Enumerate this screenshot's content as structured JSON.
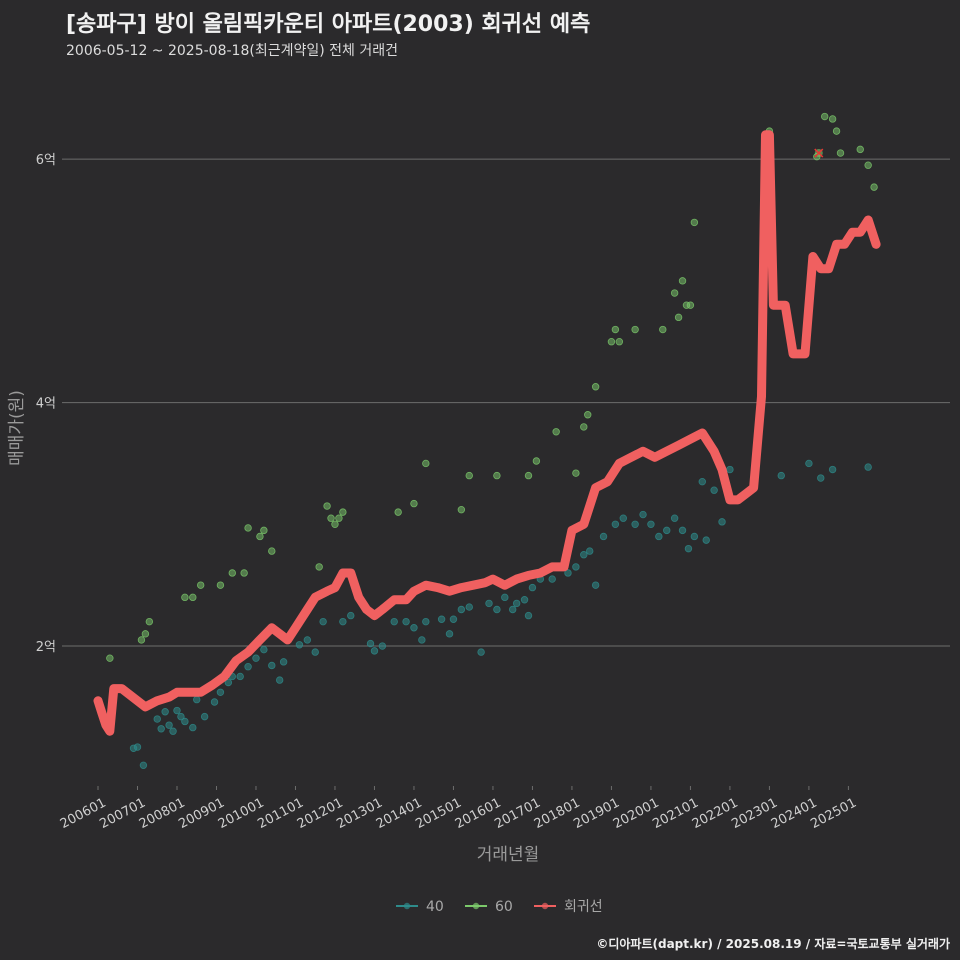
{
  "header": {
    "title": "[송파구] 방이 올림픽카운티 아파트(2003) 회귀선 예측",
    "subtitle": "2006-05-12 ~ 2025-08-18(최근계약일) 전체 거래건"
  },
  "footer": {
    "caption": "©디아파트(dapt.kr) / 2025.08.19 / 자료=국토교통부 실거래가"
  },
  "chart_data": {
    "type": "scatter",
    "title": "[송파구] 방이 올림픽카운티 아파트(2003) 회귀선 예측",
    "xlabel": "거래년월",
    "ylabel": "매매가(원)",
    "x_range": [
      2006.0,
      2025.8
    ],
    "ylim": [
      0.85,
      6.65
    ],
    "y_unit": "억",
    "yticks": [
      {
        "value": 2,
        "label": "2억"
      },
      {
        "value": 4,
        "label": "4억"
      },
      {
        "value": 6,
        "label": "6억"
      }
    ],
    "xticks": [
      {
        "value": 2006.0,
        "label": "200601"
      },
      {
        "value": 2007.0,
        "label": "200701"
      },
      {
        "value": 2008.0,
        "label": "200801"
      },
      {
        "value": 2009.0,
        "label": "200901"
      },
      {
        "value": 2010.0,
        "label": "201001"
      },
      {
        "value": 2011.0,
        "label": "201101"
      },
      {
        "value": 2012.0,
        "label": "201201"
      },
      {
        "value": 2013.0,
        "label": "201301"
      },
      {
        "value": 2014.0,
        "label": "201401"
      },
      {
        "value": 2015.0,
        "label": "201501"
      },
      {
        "value": 2016.0,
        "label": "201601"
      },
      {
        "value": 2017.0,
        "label": "201701"
      },
      {
        "value": 2018.0,
        "label": "201801"
      },
      {
        "value": 2019.0,
        "label": "201901"
      },
      {
        "value": 2020.0,
        "label": "202001"
      },
      {
        "value": 2021.0,
        "label": "202101"
      },
      {
        "value": 2022.0,
        "label": "202201"
      },
      {
        "value": 2023.0,
        "label": "202301"
      },
      {
        "value": 2024.0,
        "label": "202401"
      },
      {
        "value": 2025.0,
        "label": "202501"
      }
    ],
    "legend": [
      {
        "name": "40",
        "color": "#2e8b8b"
      },
      {
        "name": "60",
        "color": "#7cc96b"
      },
      {
        "name": "회귀선",
        "color": "#f06060"
      }
    ],
    "series": [
      {
        "name": "40",
        "color": "#2e8b8b",
        "points": [
          [
            2006.9,
            1.16
          ],
          [
            2007.0,
            1.17
          ],
          [
            2007.15,
            1.02
          ],
          [
            2007.5,
            1.4
          ],
          [
            2007.6,
            1.32
          ],
          [
            2007.7,
            1.46
          ],
          [
            2007.8,
            1.35
          ],
          [
            2007.9,
            1.3
          ],
          [
            2008.0,
            1.47
          ],
          [
            2008.1,
            1.42
          ],
          [
            2008.2,
            1.38
          ],
          [
            2008.4,
            1.33
          ],
          [
            2008.5,
            1.56
          ],
          [
            2008.7,
            1.42
          ],
          [
            2008.95,
            1.54
          ],
          [
            2009.1,
            1.62
          ],
          [
            2009.3,
            1.7
          ],
          [
            2009.4,
            1.75
          ],
          [
            2009.6,
            1.75
          ],
          [
            2009.8,
            1.83
          ],
          [
            2010.0,
            1.9
          ],
          [
            2010.2,
            1.97
          ],
          [
            2010.4,
            1.84
          ],
          [
            2010.6,
            1.72
          ],
          [
            2010.7,
            1.87
          ],
          [
            2011.1,
            2.01
          ],
          [
            2011.3,
            2.05
          ],
          [
            2011.5,
            1.95
          ],
          [
            2011.7,
            2.2
          ],
          [
            2012.2,
            2.2
          ],
          [
            2012.4,
            2.25
          ],
          [
            2012.9,
            2.02
          ],
          [
            2013.0,
            1.96
          ],
          [
            2013.2,
            2.0
          ],
          [
            2013.5,
            2.2
          ],
          [
            2013.8,
            2.2
          ],
          [
            2014.0,
            2.15
          ],
          [
            2014.2,
            2.05
          ],
          [
            2014.3,
            2.2
          ],
          [
            2014.7,
            2.22
          ],
          [
            2014.9,
            2.1
          ],
          [
            2015.0,
            2.22
          ],
          [
            2015.2,
            2.3
          ],
          [
            2015.4,
            2.32
          ],
          [
            2015.7,
            1.95
          ],
          [
            2015.9,
            2.35
          ],
          [
            2016.1,
            2.3
          ],
          [
            2016.3,
            2.4
          ],
          [
            2016.5,
            2.3
          ],
          [
            2016.6,
            2.35
          ],
          [
            2016.8,
            2.38
          ],
          [
            2016.9,
            2.25
          ],
          [
            2017.0,
            2.48
          ],
          [
            2017.2,
            2.55
          ],
          [
            2017.5,
            2.55
          ],
          [
            2017.7,
            2.65
          ],
          [
            2017.9,
            2.6
          ],
          [
            2018.1,
            2.65
          ],
          [
            2018.3,
            2.75
          ],
          [
            2018.45,
            2.78
          ],
          [
            2018.6,
            2.5
          ],
          [
            2018.8,
            2.9
          ],
          [
            2019.1,
            3.0
          ],
          [
            2019.3,
            3.05
          ],
          [
            2019.6,
            3.0
          ],
          [
            2019.8,
            3.08
          ],
          [
            2020.0,
            3.0
          ],
          [
            2020.2,
            2.9
          ],
          [
            2020.4,
            2.95
          ],
          [
            2020.6,
            3.05
          ],
          [
            2020.8,
            2.95
          ],
          [
            2020.95,
            2.8
          ],
          [
            2021.1,
            2.9
          ],
          [
            2021.3,
            3.35
          ],
          [
            2021.4,
            2.87
          ],
          [
            2021.6,
            3.28
          ],
          [
            2021.8,
            3.02
          ],
          [
            2022.0,
            3.45
          ],
          [
            2023.3,
            3.4
          ],
          [
            2024.0,
            3.5
          ],
          [
            2024.3,
            3.38
          ],
          [
            2024.6,
            3.45
          ],
          [
            2025.5,
            3.47
          ]
        ]
      },
      {
        "name": "60",
        "color": "#7cc96b",
        "points": [
          [
            2006.3,
            1.9
          ],
          [
            2007.1,
            2.05
          ],
          [
            2007.2,
            2.1
          ],
          [
            2007.3,
            2.2
          ],
          [
            2008.2,
            2.4
          ],
          [
            2008.4,
            2.4
          ],
          [
            2008.6,
            2.5
          ],
          [
            2009.1,
            2.5
          ],
          [
            2009.4,
            2.6
          ],
          [
            2009.7,
            2.6
          ],
          [
            2009.8,
            2.97
          ],
          [
            2010.1,
            2.9
          ],
          [
            2010.2,
            2.95
          ],
          [
            2010.4,
            2.78
          ],
          [
            2011.6,
            2.65
          ],
          [
            2011.8,
            3.15
          ],
          [
            2011.9,
            3.05
          ],
          [
            2012.0,
            3.0
          ],
          [
            2012.1,
            3.05
          ],
          [
            2012.2,
            3.1
          ],
          [
            2013.6,
            3.1
          ],
          [
            2014.0,
            3.17
          ],
          [
            2014.3,
            3.5
          ],
          [
            2015.2,
            3.12
          ],
          [
            2015.4,
            3.4
          ],
          [
            2016.1,
            3.4
          ],
          [
            2016.9,
            3.4
          ],
          [
            2017.1,
            3.52
          ],
          [
            2017.6,
            3.76
          ],
          [
            2018.1,
            3.42
          ],
          [
            2018.3,
            3.8
          ],
          [
            2018.4,
            3.9
          ],
          [
            2018.6,
            4.13
          ],
          [
            2019.0,
            4.5
          ],
          [
            2019.1,
            4.6
          ],
          [
            2019.2,
            4.5
          ],
          [
            2019.6,
            4.6
          ],
          [
            2020.3,
            4.6
          ],
          [
            2020.6,
            4.9
          ],
          [
            2020.7,
            4.7
          ],
          [
            2020.8,
            5.0
          ],
          [
            2020.9,
            4.8
          ],
          [
            2021.0,
            4.8
          ],
          [
            2021.1,
            5.48
          ],
          [
            2023.0,
            6.23
          ],
          [
            2024.2,
            6.02
          ],
          [
            2024.4,
            6.35
          ],
          [
            2024.6,
            6.33
          ],
          [
            2024.7,
            6.23
          ],
          [
            2024.8,
            6.05
          ],
          [
            2025.3,
            6.08
          ],
          [
            2025.5,
            5.95
          ],
          [
            2025.65,
            5.77
          ]
        ]
      },
      {
        "name": "회귀선",
        "color": "#f06060",
        "points": [
          [
            2006.0,
            1.55
          ],
          [
            2006.1,
            1.45
          ],
          [
            2006.2,
            1.35
          ],
          [
            2006.3,
            1.3
          ],
          [
            2006.4,
            1.65
          ],
          [
            2006.6,
            1.65
          ],
          [
            2006.8,
            1.6
          ],
          [
            2007.0,
            1.55
          ],
          [
            2007.2,
            1.5
          ],
          [
            2007.5,
            1.55
          ],
          [
            2007.8,
            1.58
          ],
          [
            2008.0,
            1.62
          ],
          [
            2008.3,
            1.62
          ],
          [
            2008.6,
            1.62
          ],
          [
            2008.9,
            1.68
          ],
          [
            2009.2,
            1.75
          ],
          [
            2009.5,
            1.88
          ],
          [
            2009.8,
            1.95
          ],
          [
            2010.1,
            2.05
          ],
          [
            2010.4,
            2.15
          ],
          [
            2010.6,
            2.1
          ],
          [
            2010.8,
            2.05
          ],
          [
            2011.0,
            2.15
          ],
          [
            2011.3,
            2.3
          ],
          [
            2011.5,
            2.4
          ],
          [
            2011.8,
            2.45
          ],
          [
            2012.0,
            2.48
          ],
          [
            2012.2,
            2.6
          ],
          [
            2012.4,
            2.6
          ],
          [
            2012.6,
            2.4
          ],
          [
            2012.8,
            2.3
          ],
          [
            2013.0,
            2.25
          ],
          [
            2013.2,
            2.3
          ],
          [
            2013.5,
            2.38
          ],
          [
            2013.8,
            2.38
          ],
          [
            2014.0,
            2.45
          ],
          [
            2014.3,
            2.5
          ],
          [
            2014.6,
            2.48
          ],
          [
            2014.9,
            2.45
          ],
          [
            2015.2,
            2.48
          ],
          [
            2015.5,
            2.5
          ],
          [
            2015.8,
            2.52
          ],
          [
            2016.0,
            2.55
          ],
          [
            2016.3,
            2.5
          ],
          [
            2016.6,
            2.55
          ],
          [
            2016.9,
            2.58
          ],
          [
            2017.2,
            2.6
          ],
          [
            2017.5,
            2.65
          ],
          [
            2017.8,
            2.65
          ],
          [
            2018.0,
            2.95
          ],
          [
            2018.3,
            3.0
          ],
          [
            2018.6,
            3.3
          ],
          [
            2018.9,
            3.35
          ],
          [
            2019.2,
            3.5
          ],
          [
            2019.5,
            3.55
          ],
          [
            2019.8,
            3.6
          ],
          [
            2020.1,
            3.55
          ],
          [
            2020.4,
            3.6
          ],
          [
            2020.7,
            3.65
          ],
          [
            2021.0,
            3.7
          ],
          [
            2021.3,
            3.75
          ],
          [
            2021.6,
            3.6
          ],
          [
            2021.8,
            3.45
          ],
          [
            2022.0,
            3.2
          ],
          [
            2022.2,
            3.2
          ],
          [
            2022.4,
            3.25
          ],
          [
            2022.6,
            3.3
          ],
          [
            2022.8,
            4.05
          ],
          [
            2022.9,
            6.2
          ],
          [
            2023.0,
            6.2
          ],
          [
            2023.1,
            4.8
          ],
          [
            2023.4,
            4.8
          ],
          [
            2023.6,
            4.4
          ],
          [
            2023.9,
            4.4
          ],
          [
            2024.1,
            5.2
          ],
          [
            2024.3,
            5.1
          ],
          [
            2024.5,
            5.1
          ],
          [
            2024.7,
            5.3
          ],
          [
            2024.9,
            5.3
          ],
          [
            2025.1,
            5.4
          ],
          [
            2025.3,
            5.4
          ],
          [
            2025.5,
            5.5
          ],
          [
            2025.7,
            5.3
          ]
        ]
      }
    ]
  }
}
